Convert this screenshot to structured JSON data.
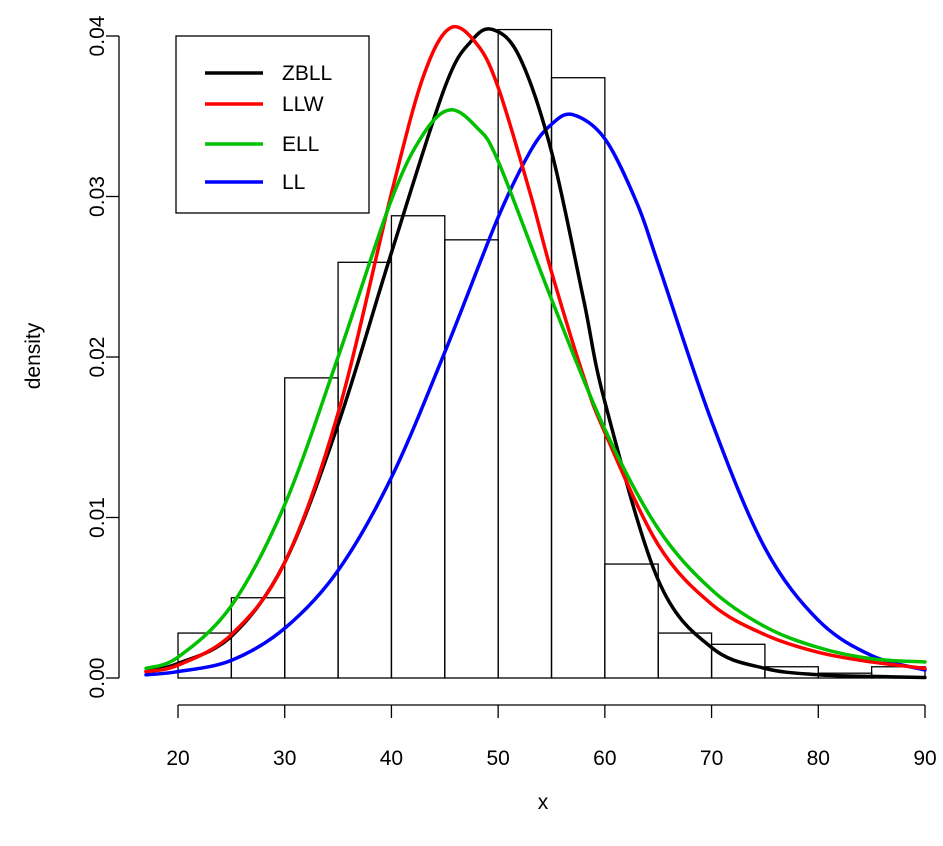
{
  "chart_data": {
    "type": "histogram-with-density-curves",
    "xlabel": "x",
    "ylabel": "density",
    "xlim": [
      17,
      90
    ],
    "ylim": [
      0,
      0.04
    ],
    "x_ticks": [
      20,
      30,
      40,
      50,
      60,
      70,
      80,
      90
    ],
    "x_tick_labels": [
      "20",
      "30",
      "40",
      "50",
      "60",
      "70",
      "80",
      "90"
    ],
    "y_ticks": [
      0,
      0.01,
      0.02,
      0.03,
      0.04
    ],
    "y_tick_labels": [
      "0.00",
      "0.01",
      "0.02",
      "0.03",
      "0.04"
    ],
    "histogram": {
      "bin_edges": [
        20,
        25,
        30,
        35,
        40,
        45,
        50,
        55,
        60,
        65,
        70,
        75,
        80,
        85,
        90
      ],
      "densities": [
        0.0028,
        0.005,
        0.0187,
        0.0259,
        0.0288,
        0.0273,
        0.0404,
        0.0374,
        0.0071,
        0.0028,
        0.0021,
        0.0007,
        0.0003,
        0.0007
      ]
    },
    "legend": {
      "position": "top-left",
      "box": true
    },
    "series": [
      {
        "name": "ZBLL",
        "color": "#000000",
        "x": [
          17,
          20,
          25,
          30,
          35,
          40,
          45,
          47.5,
          49.5,
          52,
          55,
          58,
          60,
          65,
          70,
          75,
          80,
          85,
          90
        ],
        "y": [
          0.0004,
          0.0009,
          0.0026,
          0.0072,
          0.0158,
          0.0265,
          0.0368,
          0.0397,
          0.0404,
          0.0387,
          0.0328,
          0.0236,
          0.0172,
          0.0061,
          0.0019,
          0.0006,
          0.0002,
          0.0001,
          3e-05
        ]
      },
      {
        "name": "LLW",
        "color": "#ff0000",
        "x": [
          17,
          20,
          25,
          30,
          35,
          40,
          43,
          45.5,
          48,
          50,
          53,
          55,
          58,
          60,
          65,
          70,
          75,
          80,
          85,
          90
        ],
        "y": [
          0.0004,
          0.0008,
          0.0027,
          0.0072,
          0.0165,
          0.0302,
          0.0375,
          0.0405,
          0.0395,
          0.0368,
          0.0302,
          0.0253,
          0.0188,
          0.0153,
          0.0083,
          0.0046,
          0.0027,
          0.0016,
          0.001,
          0.0006
        ]
      },
      {
        "name": "ELL",
        "color": "#00c000",
        "x": [
          17,
          20,
          25,
          30,
          35,
          40,
          43,
          45.5,
          48,
          50,
          55,
          60,
          65,
          70,
          75,
          80,
          85,
          90
        ],
        "y": [
          0.0006,
          0.0013,
          0.0045,
          0.0108,
          0.02,
          0.0298,
          0.0339,
          0.0354,
          0.0343,
          0.0322,
          0.0236,
          0.0155,
          0.0093,
          0.0055,
          0.0032,
          0.0019,
          0.0012,
          0.001
        ]
      },
      {
        "name": "LL",
        "color": "#0000ff",
        "x": [
          17,
          20,
          25,
          30,
          35,
          40,
          45,
          50,
          53,
          55,
          57,
          60,
          63,
          65,
          70,
          75,
          80,
          85,
          90
        ],
        "y": [
          0.0002,
          0.0004,
          0.0011,
          0.0031,
          0.0067,
          0.0125,
          0.0203,
          0.0287,
          0.0328,
          0.0345,
          0.0351,
          0.0336,
          0.0296,
          0.0258,
          0.016,
          0.0081,
          0.0036,
          0.0014,
          0.0005
        ]
      }
    ]
  }
}
